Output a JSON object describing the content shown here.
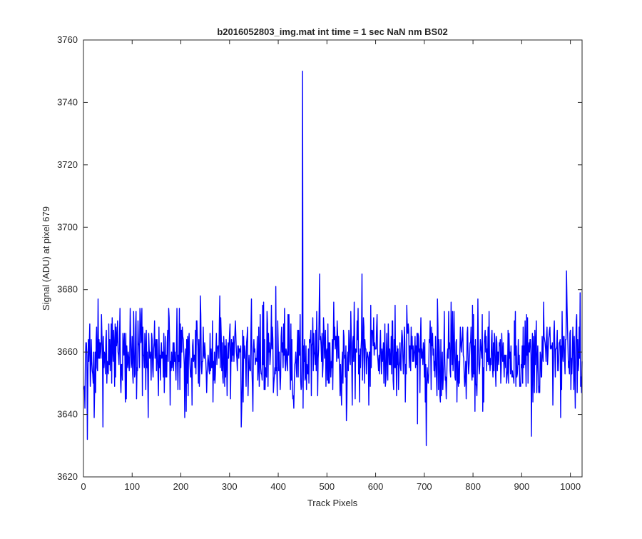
{
  "chart_data": {
    "type": "line",
    "title": "b2016052803_img.mat int time = 1 sec  NaN nm BS02",
    "xlabel": "Track Pixels",
    "ylabel": "Signal (ADU) at pixel 679",
    "xlim": [
      0,
      1024
    ],
    "ylim": [
      3620,
      3760
    ],
    "xticks": [
      0,
      100,
      200,
      300,
      400,
      500,
      600,
      700,
      800,
      900,
      1000
    ],
    "yticks": [
      3620,
      3640,
      3660,
      3680,
      3700,
      3720,
      3740,
      3760
    ],
    "grid": false,
    "series": [
      {
        "color": "#0000ff",
        "x_start": 1,
        "x_step": 1,
        "baseline": 3659,
        "noise_amplitude": 7,
        "points": [
          [
            1,
            3648
          ],
          [
            8,
            3632
          ],
          [
            10,
            3664
          ],
          [
            22,
            3639
          ],
          [
            30,
            3677
          ],
          [
            40,
            3636
          ],
          [
            52,
            3669
          ],
          [
            75,
            3674
          ],
          [
            133,
            3639
          ],
          [
            175,
            3674
          ],
          [
            178,
            3643
          ],
          [
            192,
            3674
          ],
          [
            208,
            3639
          ],
          [
            240,
            3678
          ],
          [
            280,
            3678
          ],
          [
            324,
            3636
          ],
          [
            345,
            3677
          ],
          [
            370,
            3676
          ],
          [
            395,
            3681
          ],
          [
            432,
            3642
          ],
          [
            445,
            3672
          ],
          [
            450,
            3750
          ],
          [
            458,
            3648
          ],
          [
            485,
            3685
          ],
          [
            490,
            3666
          ],
          [
            540,
            3638
          ],
          [
            572,
            3685
          ],
          [
            590,
            3675
          ],
          [
            640,
            3675
          ],
          [
            686,
            3637
          ],
          [
            704,
            3630
          ],
          [
            727,
            3677
          ],
          [
            758,
            3673
          ],
          [
            810,
            3677
          ],
          [
            885,
            3670
          ],
          [
            920,
            3633
          ],
          [
            945,
            3676
          ],
          [
            980,
            3639
          ],
          [
            992,
            3686
          ],
          [
            1010,
            3642
          ],
          [
            1020,
            3679
          ],
          [
            1024,
            3657
          ]
        ]
      }
    ]
  }
}
